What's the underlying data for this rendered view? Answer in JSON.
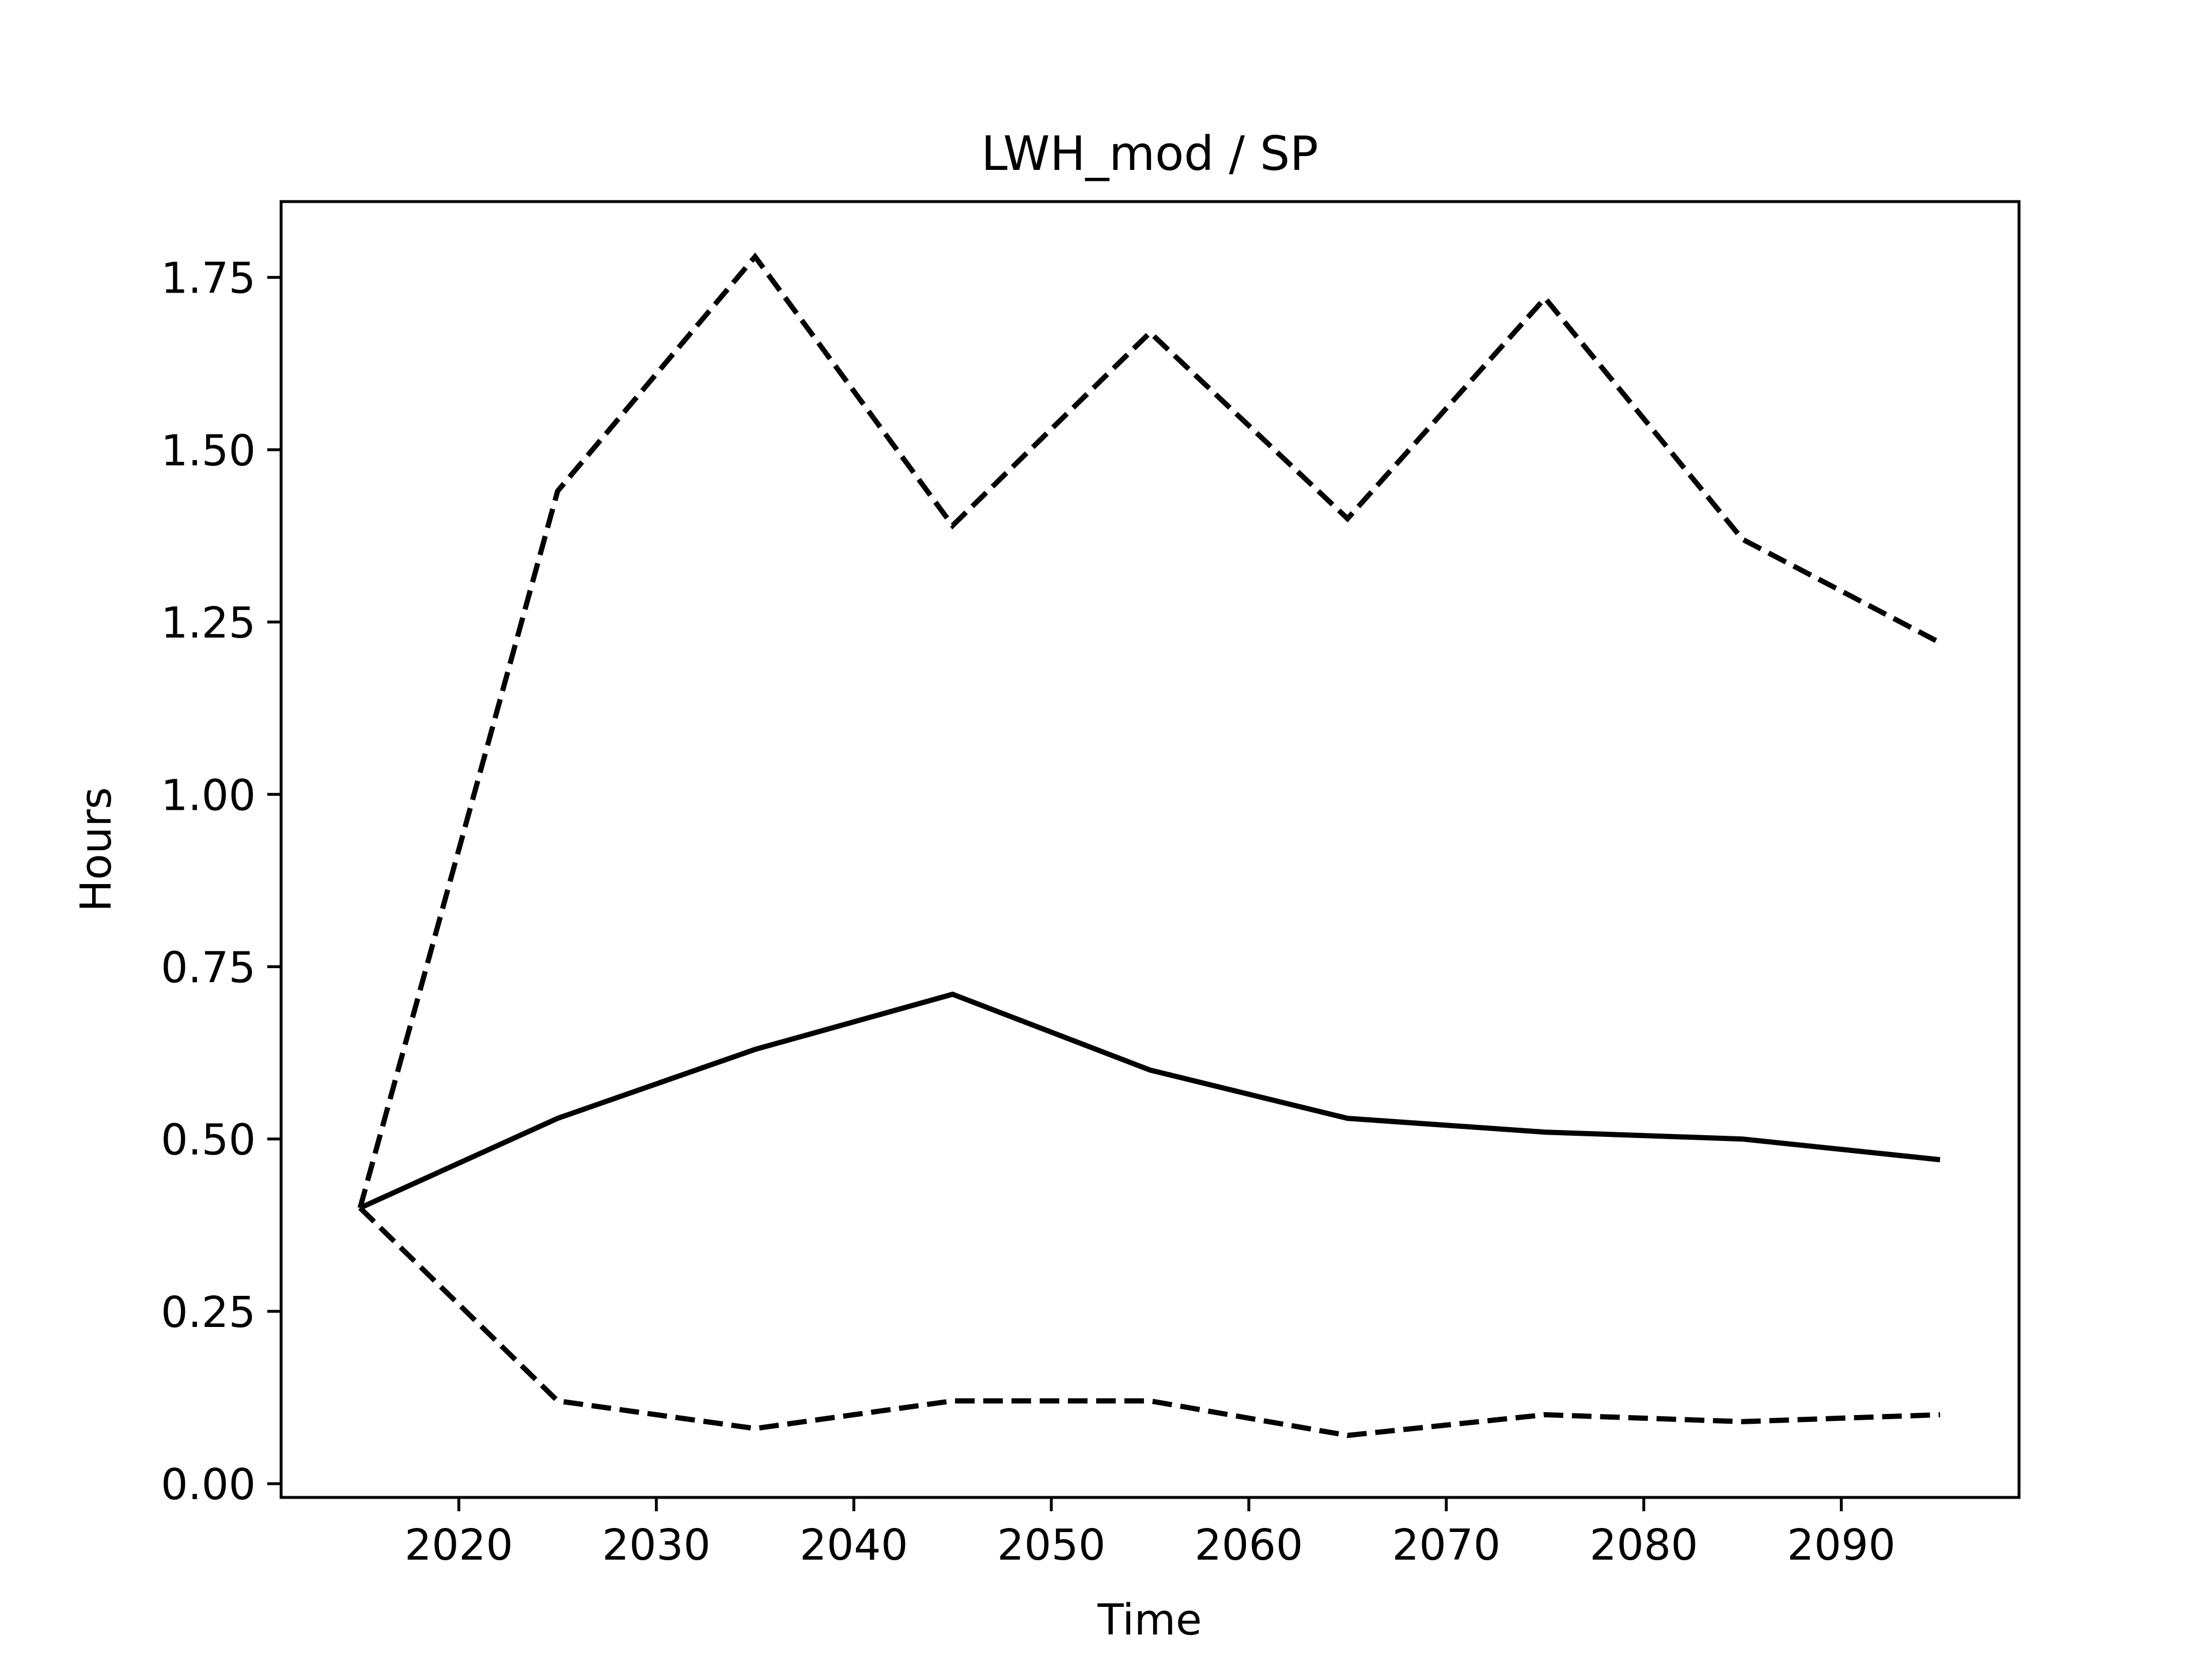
{
  "chart_data": {
    "type": "line",
    "title": "LWH_mod / SP",
    "xlabel": "Time",
    "ylabel": "Hours",
    "xlim": [
      2011,
      2099
    ],
    "ylim": [
      -0.02,
      1.86
    ],
    "xticks": [
      2020,
      2030,
      2040,
      2050,
      2060,
      2070,
      2080,
      2090
    ],
    "xtick_labels": [
      "2020",
      "2030",
      "2040",
      "2050",
      "2060",
      "2070",
      "2080",
      "2090"
    ],
    "yticks": [
      0.0,
      0.25,
      0.5,
      0.75,
      1.0,
      1.25,
      1.5,
      1.75
    ],
    "ytick_labels": [
      "0.00",
      "0.25",
      "0.50",
      "0.75",
      "1.00",
      "1.25",
      "1.50",
      "1.75"
    ],
    "grid": false,
    "x": [
      2015,
      2025,
      2035,
      2045,
      2055,
      2065,
      2075,
      2085,
      2095
    ],
    "series": [
      {
        "style": "solid",
        "color": "#000000",
        "values": [
          0.4,
          0.53,
          0.63,
          0.71,
          0.6,
          0.53,
          0.51,
          0.5,
          0.47
        ]
      },
      {
        "style": "dashed",
        "color": "#000000",
        "values": [
          0.4,
          1.44,
          1.78,
          1.39,
          1.67,
          1.4,
          1.72,
          1.37,
          1.22
        ]
      },
      {
        "style": "dashed",
        "color": "#000000",
        "values": [
          0.4,
          0.12,
          0.08,
          0.12,
          0.12,
          0.07,
          0.1,
          0.09,
          0.1
        ]
      }
    ]
  }
}
